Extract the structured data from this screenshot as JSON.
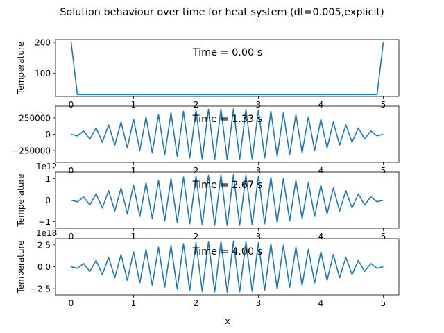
{
  "figure": {
    "title": "Solution behaviour over time for heat system (dt=0.005,explicit)",
    "xlabel": "x"
  },
  "chart_data": [
    {
      "type": "line",
      "annotation": "Time = 0.00 s",
      "ylabel": "Temperature",
      "offset_label": "",
      "xlim": [
        -0.25,
        5.25
      ],
      "ylim": [
        24,
        209
      ],
      "xticks": [
        "0",
        "1",
        "2",
        "3",
        "4",
        "5"
      ],
      "yticks": [
        {
          "v": 100,
          "label": "100"
        },
        {
          "v": 200,
          "label": "200"
        }
      ],
      "series": [
        {
          "color": "#1f77b4",
          "generator": "initial",
          "n": 51,
          "interior": 30,
          "boundary": 200
        }
      ]
    },
    {
      "type": "line",
      "annotation": "Time = 1.33 s",
      "ylabel": "",
      "offset_label": "",
      "xlim": [
        -0.25,
        5.25
      ],
      "ylim": [
        -430000,
        430000
      ],
      "xticks": [
        "0",
        "1",
        "2",
        "3",
        "4",
        "5"
      ],
      "yticks": [
        {
          "v": 250000,
          "label": "250000"
        },
        {
          "v": 0,
          "label": "0"
        },
        {
          "v": -250000,
          "label": "−250000"
        }
      ],
      "series": [
        {
          "color": "#1f77b4",
          "generator": "alternating",
          "n": 51,
          "amplitude": 390000
        }
      ]
    },
    {
      "type": "line",
      "annotation": "Time = 2.67 s",
      "ylabel": "Temperature",
      "offset_label": "1e12",
      "xlim": [
        -0.25,
        5.25
      ],
      "ylim": [
        -1.3,
        1.3
      ],
      "xticks": [
        "0",
        "1",
        "2",
        "3",
        "4",
        "5"
      ],
      "yticks": [
        {
          "v": 1,
          "label": "1"
        },
        {
          "v": 0,
          "label": "0"
        },
        {
          "v": -1,
          "label": "−1"
        }
      ],
      "series": [
        {
          "color": "#1f77b4",
          "generator": "alternating",
          "n": 51,
          "amplitude": 1.18
        }
      ]
    },
    {
      "type": "line",
      "annotation": "Time = 4.00 s",
      "ylabel": "Temperature",
      "offset_label": "1e18",
      "xlim": [
        -0.25,
        5.25
      ],
      "ylim": [
        -3.2,
        3.2
      ],
      "xticks": [
        "0",
        "1",
        "2",
        "3",
        "4",
        "5"
      ],
      "yticks": [
        {
          "v": 2.5,
          "label": "2.5"
        },
        {
          "v": 0,
          "label": "0.0"
        },
        {
          "v": -2.5,
          "label": "−2.5"
        }
      ],
      "series": [
        {
          "color": "#1f77b4",
          "generator": "alternating",
          "n": 51,
          "amplitude": 2.9
        }
      ]
    }
  ]
}
